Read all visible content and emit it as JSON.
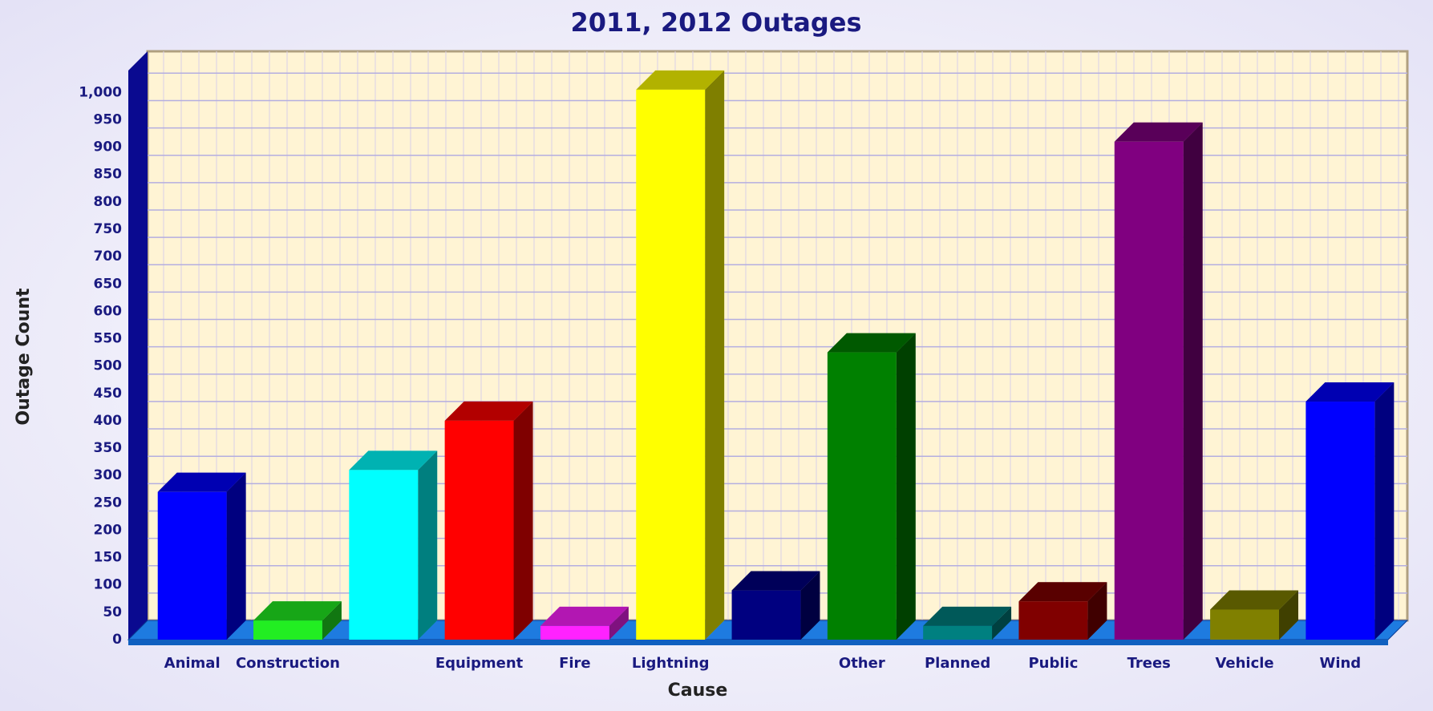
{
  "chart_data": {
    "type": "bar3d",
    "title": "2011, 2012 Outages",
    "x_label": "Cause",
    "y_label": "Outage Count",
    "categories": [
      "Animal",
      "Construction",
      null,
      "Equipment",
      "Fire",
      "Lightning",
      null,
      "Other",
      "Planned",
      "Public",
      "Trees",
      "Vehicle",
      "Wind"
    ],
    "values": [
      270,
      35,
      310,
      400,
      25,
      1005,
      90,
      525,
      25,
      70,
      910,
      55,
      435
    ],
    "colors": [
      "#0000ff",
      "#22ee22",
      "#00ffff",
      "#ff0000",
      "#ff22ff",
      "#ffff00",
      "#000080",
      "#008000",
      "#008080",
      "#800000",
      "#800080",
      "#808000",
      "#0000ff"
    ],
    "ylim": [
      0,
      1040
    ],
    "yticks": [
      0,
      50,
      100,
      150,
      200,
      250,
      300,
      350,
      400,
      450,
      500,
      550,
      600,
      650,
      700,
      750,
      800,
      850,
      900,
      950,
      {
        "value": 1000,
        "label": "1,000"
      }
    ],
    "grid": true
  }
}
